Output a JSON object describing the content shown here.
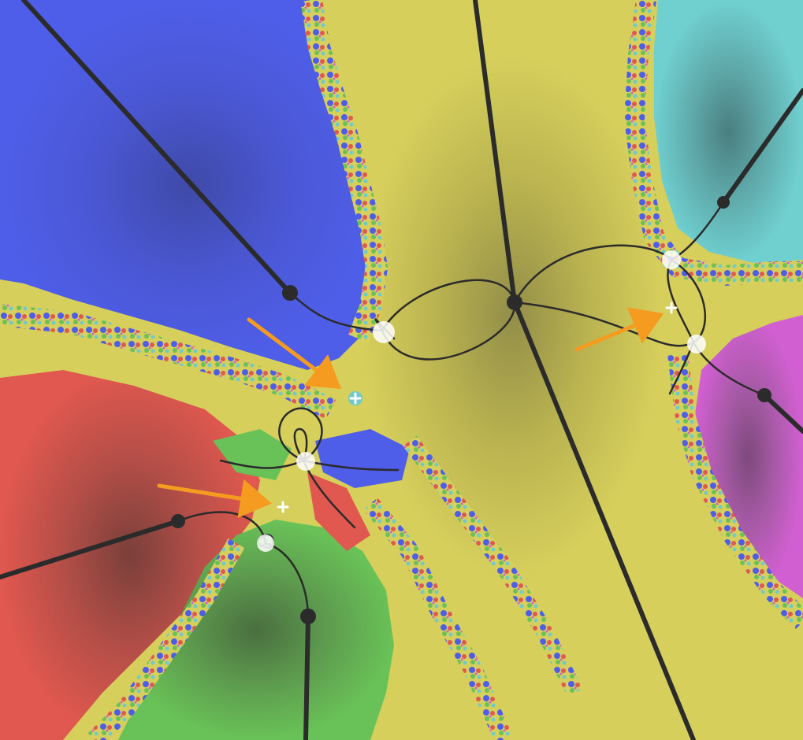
{
  "colors": {
    "blue": "#4e5ee8",
    "yellow": "#d6cf5c",
    "cyan": "#6ecbcb",
    "magenta": "#d25fd2",
    "red": "#e0584f",
    "green": "#69c257",
    "ray": "#2b2b2b",
    "arrow": "#f59b1f",
    "marker": "#ffffff"
  },
  "basins": [
    {
      "name": "blue-basin",
      "color": "blue"
    },
    {
      "name": "yellow-basin",
      "color": "yellow"
    },
    {
      "name": "cyan-basin",
      "color": "cyan"
    },
    {
      "name": "magenta-basin",
      "color": "magenta"
    },
    {
      "name": "red-basin",
      "color": "red"
    },
    {
      "name": "green-basin",
      "color": "green"
    }
  ],
  "icons": {
    "root": "filled-dot-icon",
    "critical_point": "white-plus-icon",
    "pointer": "orange-arrow-icon"
  }
}
